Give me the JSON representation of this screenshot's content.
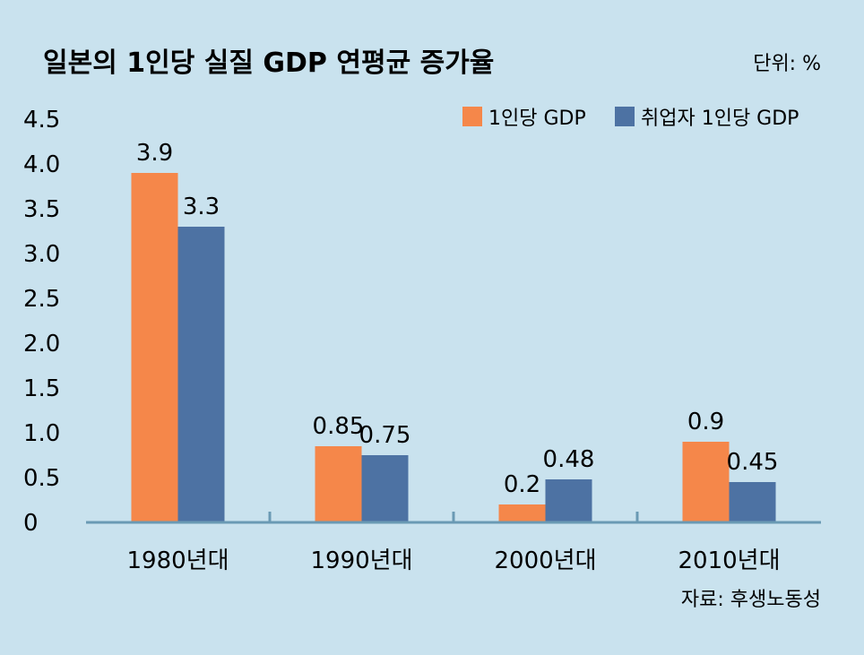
{
  "chart_data": {
    "type": "bar",
    "title": "일본의 1인당 실질 GDP 연평균 증가율",
    "unit_label": "단위: %",
    "source": "자료: 후생노동성",
    "categories": [
      "1980년대",
      "1990년대",
      "2000년대",
      "2010년대"
    ],
    "series": [
      {
        "name": "1인당 GDP",
        "color": "#f5874a",
        "values": [
          3.9,
          0.85,
          0.2,
          0.9
        ],
        "labels": [
          "3.9",
          "0.85",
          "0.2",
          "0.9"
        ]
      },
      {
        "name": "취업자 1인당 GDP",
        "color": "#4d72a3",
        "values": [
          3.3,
          0.75,
          0.48,
          0.45
        ],
        "labels": [
          "3.3",
          "0.75",
          "0.48",
          "0.45"
        ]
      }
    ],
    "yticks": [
      "0",
      "0.5",
      "1.0",
      "1.5",
      "2.0",
      "2.5",
      "3.0",
      "3.5",
      "4.0",
      "4.5"
    ],
    "ylim": [
      0,
      4.5
    ],
    "grid": false,
    "legend_position": "top-right",
    "axis_color": "#6a9ab4"
  }
}
